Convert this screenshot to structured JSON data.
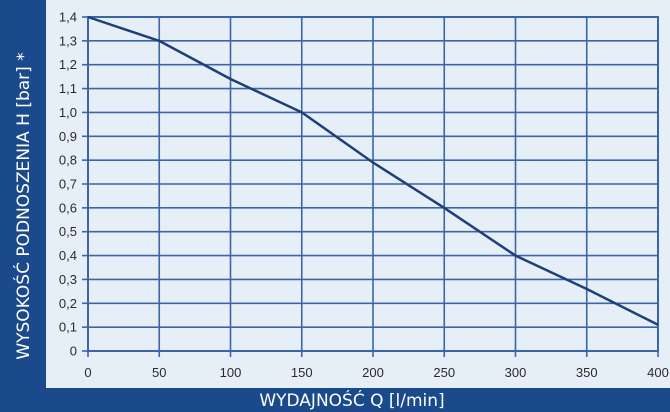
{
  "chart_data": {
    "type": "line",
    "xlabel": "WYDAJNOŚĆ Q [l/min]",
    "ylabel": "WYSOKOŚĆ PODNOSZENIA  H [bar] *",
    "xlim": [
      0,
      400
    ],
    "ylim": [
      0,
      1.4
    ],
    "x_ticks": [
      0,
      50,
      100,
      150,
      200,
      250,
      300,
      350,
      400
    ],
    "x_tick_labels": [
      "0",
      "50",
      "100",
      "150",
      "200",
      "250",
      "300",
      "350",
      "400"
    ],
    "y_ticks": [
      0,
      0.1,
      0.2,
      0.3,
      0.4,
      0.5,
      0.6,
      0.7,
      0.8,
      0.9,
      1.0,
      1.1,
      1.2,
      1.3,
      1.4
    ],
    "y_tick_labels": [
      "0",
      "0,1",
      "0,2",
      "0,3",
      "0,4",
      "0,5",
      "0,6",
      "0,7",
      "0,8",
      "0,9",
      "1,0",
      "1,1",
      "1,2",
      "1,3",
      "1,4"
    ],
    "grid": true,
    "series": [
      {
        "x": [
          0,
          50,
          100,
          150,
          200,
          250,
          300,
          350,
          400
        ],
        "y": [
          1.4,
          1.3,
          1.14,
          1.0,
          0.79,
          0.6,
          0.4,
          0.26,
          0.11
        ]
      }
    ]
  },
  "colors": {
    "background": "#1a4a8c",
    "plot_area": "#e6eff7",
    "grid": "#3a66a8",
    "line": "#1f3f78"
  }
}
